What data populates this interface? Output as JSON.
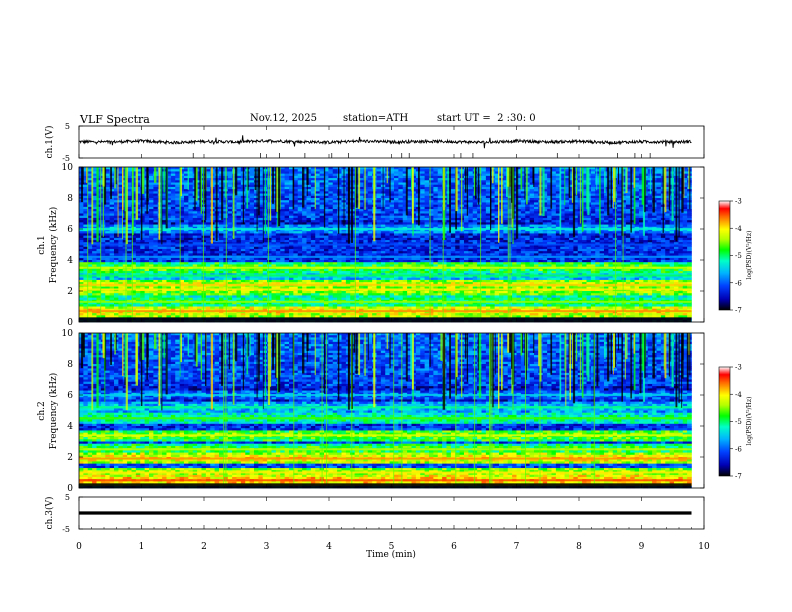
{
  "header": {
    "title": "VLF Spectra",
    "date": "Nov.12, 2025",
    "station": "station=ATH",
    "start": "start UT =  2 :30: 0"
  },
  "colors": {
    "trace": "#000000",
    "colormap": [
      "#000000",
      "#0000b4",
      "#0040ff",
      "#00b4ff",
      "#00ffc8",
      "#00ff00",
      "#b4ff00",
      "#ffff00",
      "#ff8000",
      "#ff0000",
      "#ffffff"
    ]
  },
  "chart_data": [
    {
      "type": "line",
      "id": "ch1_waveform",
      "ylabel": "ch.1(V)",
      "ytick_labels": [
        "5",
        "-5"
      ],
      "ylim": [
        -5,
        5
      ],
      "x": [
        0.0,
        0.5,
        1.0,
        1.5,
        2.0,
        2.5,
        3.0,
        3.5,
        4.0,
        4.5,
        5.0,
        5.5,
        6.0,
        6.5,
        7.0,
        7.5,
        8.0,
        8.5,
        9.0,
        9.5,
        9.8
      ],
      "y": [
        0.1,
        0.0,
        0.3,
        -0.2,
        0.2,
        0.0,
        0.4,
        0.1,
        -0.1,
        0.3,
        0.0,
        0.2,
        0.1,
        -0.1,
        0.3,
        0.0,
        0.2,
        -0.2,
        0.1,
        0.0,
        0.1
      ]
    },
    {
      "type": "heatmap",
      "id": "ch1_spectrogram",
      "ylabel": "ch.1 Frequency (kHz)",
      "ytick_labels": [
        "0",
        "2",
        "4",
        "6",
        "8",
        "10"
      ],
      "ylim": [
        0,
        10
      ],
      "colorbar_label": "log(PSD)(V²/Hz)",
      "colorbar_ticks": [
        "-3",
        "-4",
        "-5",
        "-6",
        "-7"
      ],
      "clim": [
        -7,
        -3
      ],
      "frequency_bands_khz": [
        0.7,
        1.3,
        2.1,
        2.4,
        3.0,
        3.5,
        4.2,
        5.0,
        6.0
      ],
      "band_level_log_psd": [
        -4.0,
        -4.8,
        -4.3,
        -4.2,
        -5.3,
        -4.6,
        -6.1,
        -6.4,
        -5.6
      ]
    },
    {
      "type": "heatmap",
      "id": "ch2_spectrogram",
      "ylabel": "ch.2 Frequency (kHz)",
      "ytick_labels": [
        "0",
        "2",
        "4",
        "6",
        "8",
        "10"
      ],
      "ylim": [
        0,
        10
      ],
      "colorbar_label": "log(PSD)(V²/Hz)",
      "colorbar_ticks": [
        "-3",
        "-4",
        "-5",
        "-6",
        "-7"
      ],
      "clim": [
        -7,
        -3
      ],
      "frequency_bands_khz": [
        0.5,
        1.0,
        1.9,
        2.5,
        3.4,
        4.5,
        5.2,
        6.0
      ],
      "band_level_log_psd": [
        -3.8,
        -4.3,
        -4.0,
        -4.7,
        -4.5,
        -5.0,
        -5.4,
        -5.8
      ]
    },
    {
      "type": "line",
      "id": "ch3_waveform",
      "ylabel": "ch.3(V)",
      "ytick_labels": [
        "5",
        "-5"
      ],
      "ylim": [
        -5,
        5
      ],
      "x": [
        0.0,
        9.8
      ],
      "y": [
        0.0,
        0.0
      ],
      "xlabel": "Time (min)",
      "xtick_labels": [
        "0",
        "1",
        "2",
        "3",
        "4",
        "5",
        "6",
        "7",
        "8",
        "9",
        "10"
      ],
      "xlim": [
        0,
        10
      ]
    }
  ]
}
